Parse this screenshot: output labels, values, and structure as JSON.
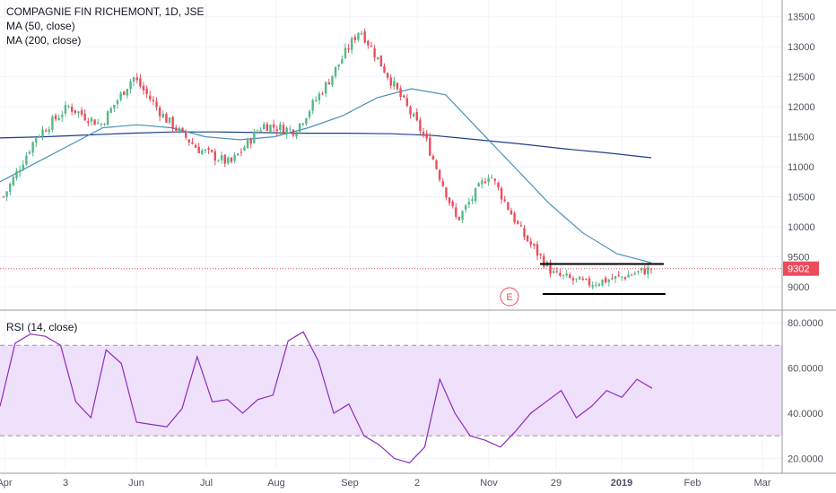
{
  "header": {
    "title": "COMPAGNIE FIN RICHEMONT, 1D, JSE",
    "ma50_label": "MA (50, close)",
    "ma200_label": "MA (200, close)"
  },
  "rsi_panel": {
    "label": "RSI (14, close)"
  },
  "colors": {
    "up": "#53b987",
    "down": "#eb4d5c",
    "ma50": "#4a90b8",
    "ma200": "#1e3f8a",
    "rsi_line": "#8e2bbd",
    "rsi_band": "#efe0fb",
    "price_tag": "#eb4d5c",
    "earnings_marker": "#eb4d5c"
  },
  "chart_data": [
    {
      "type": "candlestick",
      "price_axis": {
        "ticks": [
          "13500",
          "13000",
          "12500",
          "12000",
          "11500",
          "11000",
          "10500",
          "10000",
          "9500",
          "9000"
        ],
        "range": [
          8700,
          13600
        ]
      },
      "time_axis": {
        "ticks": [
          "Apr",
          "3",
          "Jun",
          "Jul",
          "Aug",
          "Sep",
          "2",
          "Nov",
          "29",
          "2019",
          "Feb",
          "Mar"
        ]
      },
      "last_price": "9302",
      "close_series_sampled": [
        {
          "month": "Apr-start",
          "close": 10500
        },
        {
          "month": "Apr-mid",
          "close": 11500
        },
        {
          "month": "May",
          "close": 12000
        },
        {
          "month": "May-late",
          "close": 11700
        },
        {
          "month": "Jun-mid",
          "close": 12500
        },
        {
          "month": "Jun-late",
          "close": 11800
        },
        {
          "month": "Jul",
          "close": 11300
        },
        {
          "month": "Jul-late",
          "close": 11050
        },
        {
          "month": "Aug-start",
          "close": 11700
        },
        {
          "month": "Aug-mid",
          "close": 11600
        },
        {
          "month": "Aug-late",
          "close": 12400
        },
        {
          "month": "Sep-start",
          "close": 13300
        },
        {
          "month": "Sep-mid",
          "close": 12400
        },
        {
          "month": "Oct-start",
          "close": 11500
        },
        {
          "month": "Oct-mid",
          "close": 10100
        },
        {
          "month": "Nov-start",
          "close": 10900
        },
        {
          "month": "Nov-mid",
          "close": 9900
        },
        {
          "month": "Dec-start",
          "close": 9200
        },
        {
          "month": "Dec-late",
          "close": 9050
        },
        {
          "month": "Jan-start",
          "close": 9150
        },
        {
          "month": "Jan-mid",
          "close": 9302
        }
      ],
      "ma50_sampled": [
        10750,
        11050,
        11350,
        11650,
        11700,
        11650,
        11500,
        11450,
        11500,
        11650,
        11850,
        12150,
        12300,
        12200,
        11600,
        11000,
        10400,
        9900,
        9550,
        9400
      ],
      "ma200_sampled": [
        11480,
        11500,
        11530,
        11560,
        11580,
        11580,
        11570,
        11560,
        11560,
        11550,
        11520,
        11450,
        11380,
        11300,
        11230,
        11150
      ],
      "consolidation_lines": {
        "upper": 9380,
        "lower": 8880
      },
      "earnings_marker": "E"
    },
    {
      "type": "line",
      "name": "RSI (14, close)",
      "y_axis": {
        "ticks": [
          "80.0000",
          "60.0000",
          "40.0000",
          "20.0000"
        ],
        "range": [
          15,
          84
        ]
      },
      "band": [
        30,
        70
      ],
      "values_sampled": [
        43,
        71,
        75,
        74,
        70,
        45,
        38,
        68,
        62,
        36,
        35,
        34,
        42,
        65,
        45,
        46,
        40,
        46,
        48,
        72,
        76,
        63,
        40,
        44,
        30,
        26,
        20,
        18,
        25,
        55,
        40,
        30,
        28,
        25,
        32,
        40,
        45,
        50,
        38,
        43,
        50,
        47,
        55,
        51
      ]
    }
  ]
}
